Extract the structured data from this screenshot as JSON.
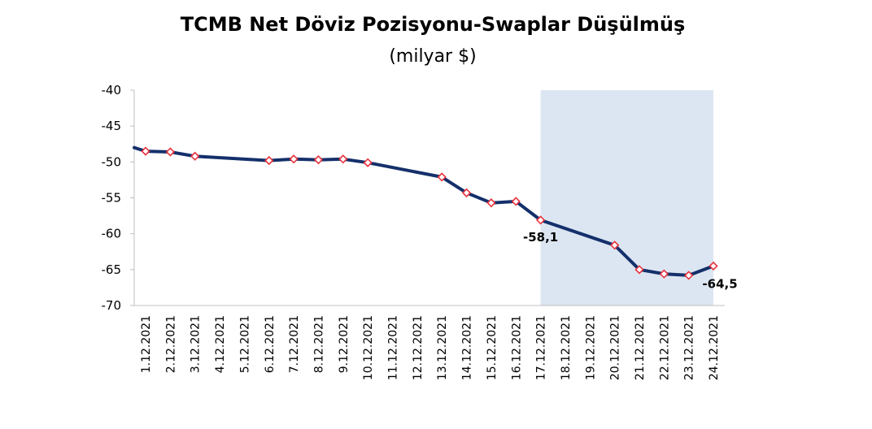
{
  "chart_data": {
    "type": "line",
    "title": "TCMB Net Döviz Pozisyonu-Swaplar Düşülmüş",
    "subtitle": "(milyar $)",
    "xlabel": "",
    "ylabel": "",
    "ylim": [
      -70,
      -40
    ],
    "yticks": [
      "-40",
      "-45",
      "-50",
      "-55",
      "-60",
      "-65",
      "-70"
    ],
    "ytick_values": [
      -40,
      -45,
      -50,
      -55,
      -60,
      -65,
      -70
    ],
    "categories": [
      "1.12.2021",
      "2.12.2021",
      "3.12.2021",
      "4.12.2021",
      "5.12.2021",
      "6.12.2021",
      "7.12.2021",
      "8.12.2021",
      "9.12.2021",
      "10.12.2021",
      "11.12.2021",
      "12.12.2021",
      "13.12.2021",
      "14.12.2021",
      "15.12.2021",
      "16.12.2021",
      "17.12.2021",
      "18.12.2021",
      "19.12.2021",
      "20.12.2021",
      "21.12.2021",
      "22.12.2021",
      "23.12.2021",
      "24.12.2021"
    ],
    "line_start_value": -48.0,
    "series": [
      {
        "values": [
          -48.5,
          -48.6,
          -49.2,
          null,
          null,
          -49.8,
          -49.6,
          -49.7,
          -49.6,
          -50.1,
          null,
          null,
          -52.1,
          -54.3,
          -55.7,
          -55.5,
          -58.1,
          null,
          null,
          -61.6,
          -65.0,
          -65.6,
          -65.8,
          -64.5
        ],
        "color": "#14306b",
        "marker_fill": "#ffffff",
        "marker_edge": "#e8323c"
      }
    ],
    "data_labels": [
      {
        "category": "17.12.2021",
        "text": "-58,1"
      },
      {
        "category": "24.12.2021",
        "text": "-64,5"
      }
    ],
    "highlight_range": [
      "17.12.2021",
      "24.12.2021"
    ],
    "highlight_color": "#dce6f2",
    "grid": false,
    "legend": "none",
    "axis_color": "#bfbfbf"
  }
}
